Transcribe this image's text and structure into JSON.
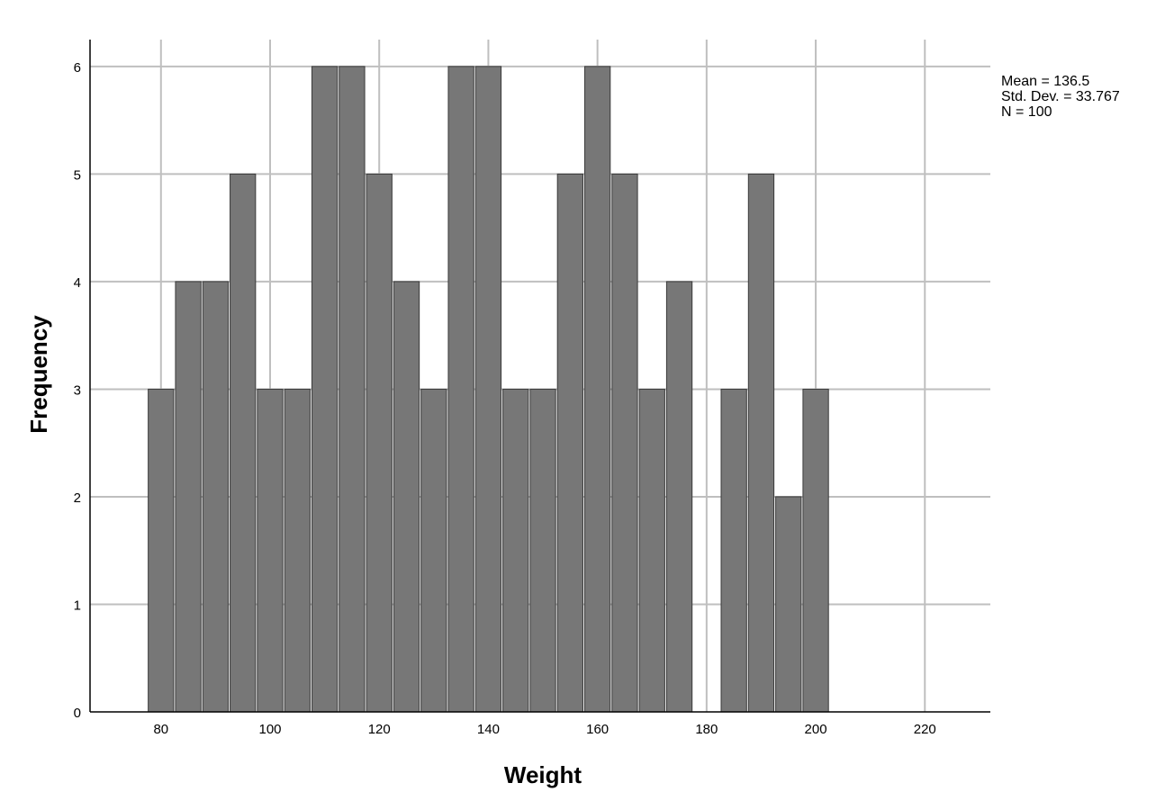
{
  "chart_data": {
    "type": "bar",
    "subtype": "histogram",
    "title": "",
    "xlabel": "Weight",
    "ylabel": "Frequency",
    "xlim": [
      67,
      232
    ],
    "ylim": [
      0,
      6.25
    ],
    "x_ticks": [
      80,
      100,
      120,
      140,
      160,
      180,
      200,
      220
    ],
    "y_ticks": [
      0,
      1,
      2,
      3,
      4,
      5,
      6
    ],
    "grid": true,
    "bin_width": 5,
    "bins": [
      {
        "start": 77.5,
        "end": 82.5,
        "value": 3
      },
      {
        "start": 82.5,
        "end": 87.5,
        "value": 4
      },
      {
        "start": 87.5,
        "end": 92.5,
        "value": 4
      },
      {
        "start": 92.5,
        "end": 97.5,
        "value": 5
      },
      {
        "start": 97.5,
        "end": 102.5,
        "value": 3
      },
      {
        "start": 102.5,
        "end": 107.5,
        "value": 3
      },
      {
        "start": 107.5,
        "end": 112.5,
        "value": 6
      },
      {
        "start": 112.5,
        "end": 117.5,
        "value": 6
      },
      {
        "start": 117.5,
        "end": 122.5,
        "value": 5
      },
      {
        "start": 122.5,
        "end": 127.5,
        "value": 4
      },
      {
        "start": 127.5,
        "end": 132.5,
        "value": 3
      },
      {
        "start": 132.5,
        "end": 137.5,
        "value": 6
      },
      {
        "start": 137.5,
        "end": 142.5,
        "value": 6
      },
      {
        "start": 142.5,
        "end": 147.5,
        "value": 3
      },
      {
        "start": 147.5,
        "end": 152.5,
        "value": 3
      },
      {
        "start": 152.5,
        "end": 157.5,
        "value": 5
      },
      {
        "start": 157.5,
        "end": 162.5,
        "value": 6
      },
      {
        "start": 162.5,
        "end": 167.5,
        "value": 5
      },
      {
        "start": 167.5,
        "end": 172.5,
        "value": 3
      },
      {
        "start": 172.5,
        "end": 177.5,
        "value": 4
      },
      {
        "start": 177.5,
        "end": 182.5,
        "value": 0
      },
      {
        "start": 182.5,
        "end": 187.5,
        "value": 3
      },
      {
        "start": 187.5,
        "end": 192.5,
        "value": 5
      },
      {
        "start": 192.5,
        "end": 197.5,
        "value": 2
      },
      {
        "start": 197.5,
        "end": 202.5,
        "value": 3
      }
    ],
    "stats": {
      "mean": "Mean = 136.5",
      "std_dev": "Std. Dev. = 33.767",
      "n": "N = 100"
    },
    "colors": {
      "bar_fill": "#777777",
      "bar_stroke": "#3a3a3a",
      "grid": "#bfbfbf",
      "axis": "#000000"
    }
  }
}
